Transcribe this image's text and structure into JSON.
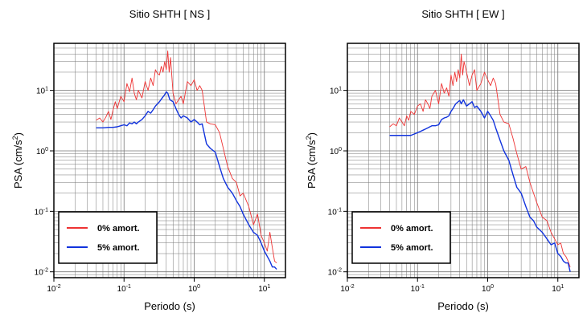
{
  "chart_data": [
    {
      "type": "line",
      "title": "Sitio SHTH [ NS ]",
      "xlabel": "Periodo (s)",
      "ylabel_main": "PSA (cm/s",
      "ylabel_sup": "2",
      "ylabel_close": ")",
      "x_scale": "log",
      "y_scale": "log",
      "xlim": [
        0.01,
        20
      ],
      "ylim": [
        0.008,
        60
      ],
      "grid": true,
      "legend_position": "bottom-left",
      "x_ticks": [
        {
          "value": 0.01,
          "base": "10",
          "exp": "-2"
        },
        {
          "value": 0.1,
          "base": "10",
          "exp": "-1"
        },
        {
          "value": 1,
          "base": "10",
          "exp": "0"
        },
        {
          "value": 10,
          "base": "10",
          "exp": "1"
        }
      ],
      "y_ticks": [
        {
          "value": 0.01,
          "base": "10",
          "exp": "-2"
        },
        {
          "value": 0.1,
          "base": "10",
          "exp": "-1"
        },
        {
          "value": 1,
          "base": "10",
          "exp": "0"
        },
        {
          "value": 10,
          "base": "10",
          "exp": "1"
        }
      ],
      "series": [
        {
          "name": "0% amort.",
          "color": "#ee3333",
          "x": [
            0.04,
            0.045,
            0.05,
            0.055,
            0.06,
            0.065,
            0.07,
            0.075,
            0.08,
            0.09,
            0.1,
            0.11,
            0.12,
            0.13,
            0.14,
            0.15,
            0.16,
            0.18,
            0.2,
            0.22,
            0.24,
            0.26,
            0.28,
            0.3,
            0.32,
            0.34,
            0.36,
            0.38,
            0.4,
            0.42,
            0.44,
            0.46,
            0.5,
            0.55,
            0.6,
            0.65,
            0.7,
            0.8,
            0.9,
            1.0,
            1.1,
            1.2,
            1.3,
            1.5,
            1.7,
            2.0,
            2.3,
            2.6,
            3.0,
            3.5,
            4.0,
            4.5,
            5.0,
            6.0,
            7.0,
            8.0,
            9.0,
            10.0,
            11.0,
            12.0,
            13.0,
            14.0,
            15.0
          ],
          "y": [
            3.2,
            3.5,
            3.0,
            3.6,
            4.5,
            3.3,
            4.8,
            6.5,
            5.0,
            8.0,
            6.5,
            13.0,
            9.5,
            16.0,
            9.0,
            7.0,
            10.0,
            7.5,
            14.0,
            10.0,
            16.0,
            12.0,
            22.0,
            19.0,
            18.0,
            25.0,
            20.0,
            30.0,
            22.0,
            45.0,
            20.0,
            35.0,
            9.0,
            6.0,
            7.0,
            8.0,
            6.0,
            14.0,
            12.0,
            15.0,
            10.0,
            12.0,
            10.0,
            3.0,
            2.8,
            2.7,
            2.0,
            1.1,
            0.55,
            0.35,
            0.3,
            0.18,
            0.2,
            0.12,
            0.06,
            0.09,
            0.04,
            0.03,
            0.022,
            0.045,
            0.025,
            0.015,
            0.014
          ]
        },
        {
          "name": "5% amort.",
          "color": "#1133dd",
          "x": [
            0.04,
            0.05,
            0.06,
            0.07,
            0.08,
            0.09,
            0.1,
            0.11,
            0.12,
            0.13,
            0.14,
            0.15,
            0.16,
            0.18,
            0.2,
            0.22,
            0.24,
            0.26,
            0.28,
            0.3,
            0.32,
            0.35,
            0.38,
            0.4,
            0.42,
            0.45,
            0.5,
            0.55,
            0.6,
            0.65,
            0.7,
            0.8,
            0.9,
            1.0,
            1.1,
            1.2,
            1.3,
            1.5,
            1.7,
            2.0,
            2.3,
            2.6,
            3.0,
            3.5,
            4.0,
            4.5,
            5.0,
            6.0,
            7.0,
            8.0,
            9.0,
            10.0,
            11.0,
            12.0,
            13.0,
            14.0,
            15.0
          ],
          "y": [
            2.4,
            2.4,
            2.45,
            2.45,
            2.5,
            2.6,
            2.7,
            2.6,
            2.9,
            2.8,
            3.0,
            2.8,
            3.0,
            3.3,
            3.8,
            4.5,
            4.2,
            4.8,
            5.5,
            6.0,
            6.5,
            7.5,
            8.5,
            9.5,
            9.0,
            7.0,
            6.5,
            5.0,
            4.0,
            3.5,
            3.8,
            3.5,
            3.0,
            3.3,
            3.0,
            2.7,
            2.8,
            1.3,
            1.1,
            0.95,
            0.55,
            0.35,
            0.25,
            0.2,
            0.15,
            0.12,
            0.09,
            0.06,
            0.045,
            0.04,
            0.03,
            0.022,
            0.018,
            0.015,
            0.012,
            0.012,
            0.011
          ]
        }
      ]
    },
    {
      "type": "line",
      "title": "Sitio SHTH [ EW ]",
      "xlabel": "Periodo (s)",
      "ylabel_main": "PSA (cm/s",
      "ylabel_sup": "2",
      "ylabel_close": ")",
      "x_scale": "log",
      "y_scale": "log",
      "xlim": [
        0.01,
        20
      ],
      "ylim": [
        0.008,
        60
      ],
      "grid": true,
      "legend_position": "bottom-left",
      "x_ticks": [
        {
          "value": 0.01,
          "base": "10",
          "exp": "-2"
        },
        {
          "value": 0.1,
          "base": "10",
          "exp": "-1"
        },
        {
          "value": 1,
          "base": "10",
          "exp": "0"
        },
        {
          "value": 10,
          "base": "10",
          "exp": "1"
        }
      ],
      "y_ticks": [
        {
          "value": 0.01,
          "base": "10",
          "exp": "-2"
        },
        {
          "value": 0.1,
          "base": "10",
          "exp": "-1"
        },
        {
          "value": 1,
          "base": "10",
          "exp": "0"
        },
        {
          "value": 10,
          "base": "10",
          "exp": "1"
        }
      ],
      "series": [
        {
          "name": "0% amort.",
          "color": "#ee3333",
          "x": [
            0.04,
            0.045,
            0.05,
            0.055,
            0.06,
            0.065,
            0.07,
            0.075,
            0.08,
            0.09,
            0.1,
            0.11,
            0.12,
            0.13,
            0.14,
            0.15,
            0.16,
            0.18,
            0.2,
            0.22,
            0.24,
            0.26,
            0.28,
            0.3,
            0.32,
            0.34,
            0.36,
            0.38,
            0.4,
            0.42,
            0.44,
            0.46,
            0.5,
            0.55,
            0.6,
            0.65,
            0.7,
            0.8,
            0.9,
            1.0,
            1.1,
            1.2,
            1.3,
            1.5,
            1.7,
            2.0,
            2.3,
            2.6,
            3.0,
            3.5,
            4.0,
            4.5,
            5.0,
            6.0,
            7.0,
            8.0,
            9.0,
            10.0,
            11.0,
            12.0,
            13.0,
            14.0,
            15.0
          ],
          "y": [
            2.5,
            2.8,
            2.6,
            3.5,
            3.0,
            2.6,
            3.8,
            3.2,
            4.5,
            4.0,
            5.5,
            6.0,
            4.5,
            7.0,
            6.0,
            5.0,
            8.0,
            10.0,
            6.0,
            13.0,
            9.0,
            11.0,
            8.0,
            18.0,
            12.0,
            20.0,
            14.0,
            22.0,
            16.0,
            40.0,
            18.0,
            30.0,
            20.0,
            12.0,
            18.0,
            22.0,
            10.0,
            13.0,
            20.0,
            15.0,
            12.0,
            16.0,
            13.0,
            4.0,
            3.0,
            2.8,
            1.6,
            0.9,
            0.5,
            0.55,
            0.3,
            0.2,
            0.14,
            0.08,
            0.07,
            0.045,
            0.035,
            0.028,
            0.03,
            0.02,
            0.018,
            0.015,
            0.012
          ]
        },
        {
          "name": "5% amort.",
          "color": "#1133dd",
          "x": [
            0.04,
            0.05,
            0.06,
            0.07,
            0.08,
            0.09,
            0.1,
            0.11,
            0.12,
            0.13,
            0.14,
            0.15,
            0.16,
            0.18,
            0.2,
            0.22,
            0.24,
            0.26,
            0.28,
            0.3,
            0.32,
            0.35,
            0.38,
            0.4,
            0.42,
            0.45,
            0.5,
            0.55,
            0.6,
            0.65,
            0.7,
            0.8,
            0.9,
            1.0,
            1.1,
            1.2,
            1.3,
            1.5,
            1.7,
            2.0,
            2.3,
            2.6,
            3.0,
            3.5,
            4.0,
            4.5,
            5.0,
            6.0,
            7.0,
            8.0,
            9.0,
            10.0,
            11.0,
            12.0,
            13.0,
            14.0,
            15.0
          ],
          "y": [
            1.8,
            1.8,
            1.8,
            1.8,
            1.8,
            1.9,
            2.0,
            2.1,
            2.2,
            2.3,
            2.4,
            2.5,
            2.6,
            2.6,
            2.7,
            3.3,
            3.5,
            3.6,
            3.8,
            4.5,
            5.0,
            6.0,
            6.5,
            6.8,
            6.0,
            7.0,
            5.5,
            6.0,
            6.5,
            5.2,
            5.5,
            4.5,
            3.5,
            4.5,
            3.8,
            3.2,
            2.4,
            1.5,
            1.0,
            0.7,
            0.4,
            0.25,
            0.2,
            0.12,
            0.08,
            0.07,
            0.055,
            0.045,
            0.035,
            0.028,
            0.03,
            0.02,
            0.018,
            0.015,
            0.014,
            0.014,
            0.01
          ]
        }
      ]
    }
  ]
}
